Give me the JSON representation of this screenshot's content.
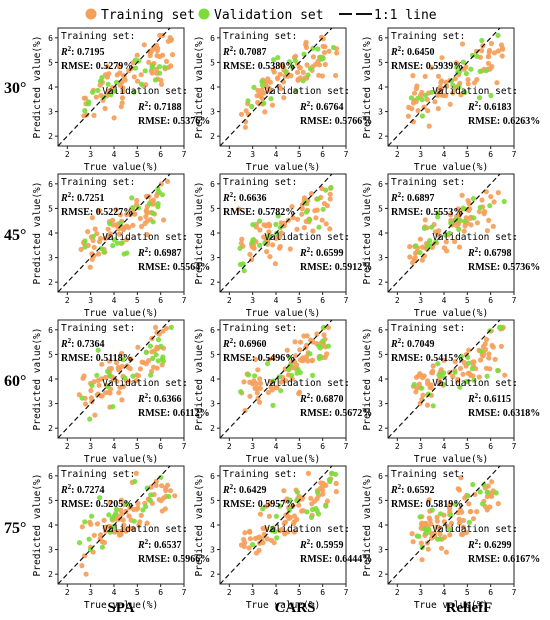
{
  "legend": {
    "training": "Training set",
    "validation": "Validation set",
    "line": "1:1 line",
    "colors": {
      "training": "#f5a05a",
      "validation": "#7ddc3a",
      "line": "#111111"
    }
  },
  "row_labels": [
    "30°",
    "45°",
    "60°",
    "75°"
  ],
  "col_labels": [
    "SPA",
    "CARS",
    "ReliefF"
  ],
  "axis": {
    "xlabel": "True value(%)",
    "ylabel": "Predicted value(%)",
    "xticks": [
      2,
      3,
      4,
      5,
      6,
      7
    ],
    "yticks": [
      2,
      3,
      4,
      5,
      6
    ],
    "xlim": [
      1.6,
      7.0
    ],
    "ylim": [
      1.6,
      6.4
    ]
  },
  "text": {
    "train_head": "Training set:",
    "val_head": "Validation set:",
    "r2_prefix": "R",
    "r2_suffix": ": ",
    "rmse_prefix": "RMSE: "
  },
  "chart_data": [
    {
      "type": "scatter",
      "row": "30°",
      "method": "SPA",
      "train": {
        "r2": "0.7195",
        "rmse": "0.5279%"
      },
      "val": {
        "r2": "0.7188",
        "rmse": "0.5376%"
      }
    },
    {
      "type": "scatter",
      "row": "30°",
      "method": "CARS",
      "train": {
        "r2": "0.7087",
        "rmse": "0.5380%"
      },
      "val": {
        "r2": "0.6764",
        "rmse": "0.5766%"
      }
    },
    {
      "type": "scatter",
      "row": "30°",
      "method": "ReliefF",
      "train": {
        "r2": "0.6450",
        "rmse": "0.5939%"
      },
      "val": {
        "r2": "0.6183",
        "rmse": "0.6263%"
      }
    },
    {
      "type": "scatter",
      "row": "45°",
      "method": "SPA",
      "train": {
        "r2": "0.7251",
        "rmse": "0.5227%"
      },
      "val": {
        "r2": "0.6987",
        "rmse": "0.5564%"
      }
    },
    {
      "type": "scatter",
      "row": "45°",
      "method": "CARS",
      "train": {
        "r2": "0.6636",
        "rmse": "0.5782%"
      },
      "val": {
        "r2": "0.6599",
        "rmse": "0.5912%"
      }
    },
    {
      "type": "scatter",
      "row": "45°",
      "method": "ReliefF",
      "train": {
        "r2": "0.6897",
        "rmse": "0.5553%"
      },
      "val": {
        "r2": "0.6798",
        "rmse": "0.5736%"
      }
    },
    {
      "type": "scatter",
      "row": "60°",
      "method": "SPA",
      "train": {
        "r2": "0.7364",
        "rmse": "0.5118%"
      },
      "val": {
        "r2": "0.6366",
        "rmse": "0.6112%"
      }
    },
    {
      "type": "scatter",
      "row": "60°",
      "method": "CARS",
      "train": {
        "r2": "0.6960",
        "rmse": "0.5496%"
      },
      "val": {
        "r2": "0.6870",
        "rmse": "0.5672%"
      }
    },
    {
      "type": "scatter",
      "row": "60°",
      "method": "ReliefF",
      "train": {
        "r2": "0.7049",
        "rmse": "0.5415%"
      },
      "val": {
        "r2": "0.6115",
        "rmse": "0.6318%"
      }
    },
    {
      "type": "scatter",
      "row": "75°",
      "method": "SPA",
      "train": {
        "r2": "0.7274",
        "rmse": "0.5205%"
      },
      "val": {
        "r2": "0.6537",
        "rmse": "0.5966%"
      }
    },
    {
      "type": "scatter",
      "row": "75°",
      "method": "CARS",
      "train": {
        "r2": "0.6429",
        "rmse": "0.5957%"
      },
      "val": {
        "r2": "0.5959",
        "rmse": "0.6444%"
      }
    },
    {
      "type": "scatter",
      "row": "75°",
      "method": "ReliefF",
      "train": {
        "r2": "0.6592",
        "rmse": "0.5819%"
      },
      "val": {
        "r2": "0.6299",
        "rmse": "0.6167%"
      }
    }
  ]
}
